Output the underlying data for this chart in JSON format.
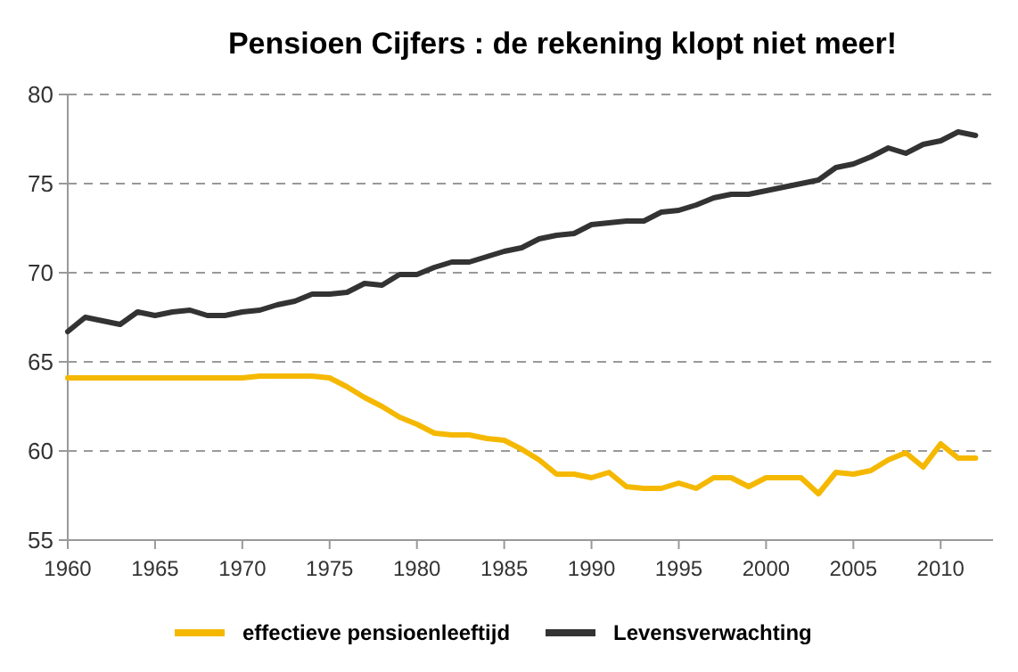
{
  "chart_data": {
    "type": "line",
    "title": "Pensioen Cijfers : de rekening klopt niet meer!",
    "x": [
      1960,
      1961,
      1962,
      1963,
      1964,
      1965,
      1966,
      1967,
      1968,
      1969,
      1970,
      1971,
      1972,
      1973,
      1974,
      1975,
      1976,
      1977,
      1978,
      1979,
      1980,
      1981,
      1982,
      1983,
      1984,
      1985,
      1986,
      1987,
      1988,
      1989,
      1990,
      1991,
      1992,
      1993,
      1994,
      1995,
      1996,
      1997,
      1998,
      1999,
      2000,
      2001,
      2002,
      2003,
      2004,
      2005,
      2006,
      2007,
      2008,
      2009,
      2010,
      2011,
      2012
    ],
    "series": [
      {
        "name": "effectieve pensioenleeftijd",
        "color": "#f5b800",
        "values": [
          64.1,
          64.1,
          64.1,
          64.1,
          64.1,
          64.1,
          64.1,
          64.1,
          64.1,
          64.1,
          64.1,
          64.2,
          64.2,
          64.2,
          64.2,
          64.1,
          63.6,
          63.0,
          62.5,
          61.9,
          61.5,
          61.0,
          60.9,
          60.9,
          60.7,
          60.6,
          60.1,
          59.5,
          58.7,
          58.7,
          58.5,
          58.8,
          58.0,
          57.9,
          57.9,
          58.2,
          57.9,
          58.5,
          58.5,
          58.0,
          58.5,
          58.5,
          58.5,
          57.6,
          58.8,
          58.7,
          58.9,
          59.5,
          59.9,
          59.1,
          60.4,
          59.6,
          59.6
        ]
      },
      {
        "name": "Levensverwachting",
        "color": "#333333",
        "values": [
          66.7,
          67.5,
          67.3,
          67.1,
          67.8,
          67.6,
          67.8,
          67.9,
          67.6,
          67.6,
          67.8,
          67.9,
          68.2,
          68.4,
          68.8,
          68.8,
          68.9,
          69.4,
          69.3,
          69.9,
          69.9,
          70.3,
          70.6,
          70.6,
          70.9,
          71.2,
          71.4,
          71.9,
          72.1,
          72.2,
          72.7,
          72.8,
          72.9,
          72.9,
          73.4,
          73.5,
          73.8,
          74.2,
          74.4,
          74.4,
          74.6,
          74.8,
          75.0,
          75.2,
          75.9,
          76.1,
          76.5,
          77.0,
          76.7,
          77.2,
          77.4,
          77.9,
          77.7
        ]
      }
    ],
    "xlim": [
      1960,
      2013
    ],
    "xticks": [
      1960,
      1965,
      1970,
      1975,
      1980,
      1985,
      1990,
      1995,
      2000,
      2005,
      2010
    ],
    "ylim": [
      55,
      80
    ],
    "yticks": [
      55,
      60,
      65,
      70,
      75,
      80
    ],
    "grid": "y",
    "legend": "bottom",
    "line_style": "solid",
    "marker": "none"
  }
}
